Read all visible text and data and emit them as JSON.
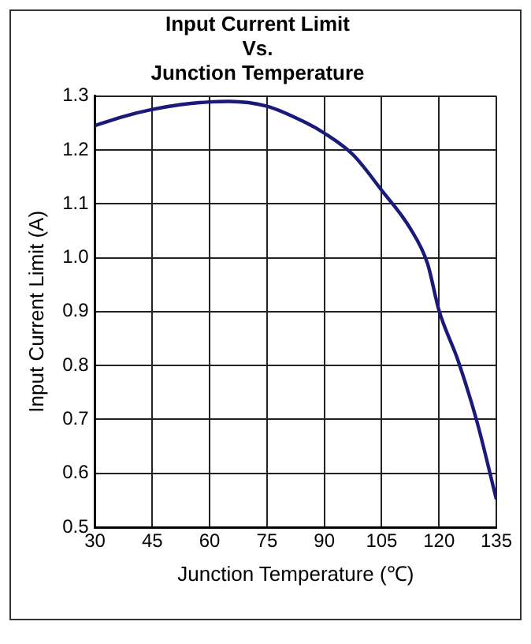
{
  "chart_data": {
    "type": "line",
    "title": [
      "Input Current Limit",
      "Vs.",
      "Junction Temperature"
    ],
    "xlabel": "Junction Temperature (℃)",
    "ylabel": "Input Current Limit (A)",
    "x": [
      30,
      37.5,
      45,
      52.5,
      60,
      65,
      75,
      85,
      90,
      97.5,
      105,
      112.5,
      117,
      120,
      125,
      130,
      135
    ],
    "series": [
      {
        "color": "#1a1a7a",
        "values": [
          1.245,
          1.262,
          1.275,
          1.284,
          1.289,
          1.29,
          1.281,
          1.251,
          1.231,
          1.191,
          1.125,
          1.054,
          0.989,
          0.902,
          0.809,
          0.694,
          0.552
        ]
      }
    ],
    "xlim": [
      30,
      135
    ],
    "xticks": [
      30,
      45,
      60,
      75,
      90,
      105,
      120,
      135
    ],
    "ylim": [
      0.5,
      1.3
    ],
    "yticks": [
      {
        "value": 0.5,
        "label": "0.5"
      },
      {
        "value": 0.6,
        "label": "0.6"
      },
      {
        "value": 0.7,
        "label": "0.7"
      },
      {
        "value": 0.8,
        "label": "0.8"
      },
      {
        "value": 0.9,
        "label": "0.9"
      },
      {
        "value": 1.0,
        "label": "1.0"
      },
      {
        "value": 1.1,
        "label": "1.1"
      },
      {
        "value": 1.2,
        "label": "1.2"
      },
      {
        "value": 1.3,
        "label": "1.3"
      }
    ],
    "grid": true,
    "legend": false,
    "marker": "none",
    "line_style": "solid"
  }
}
